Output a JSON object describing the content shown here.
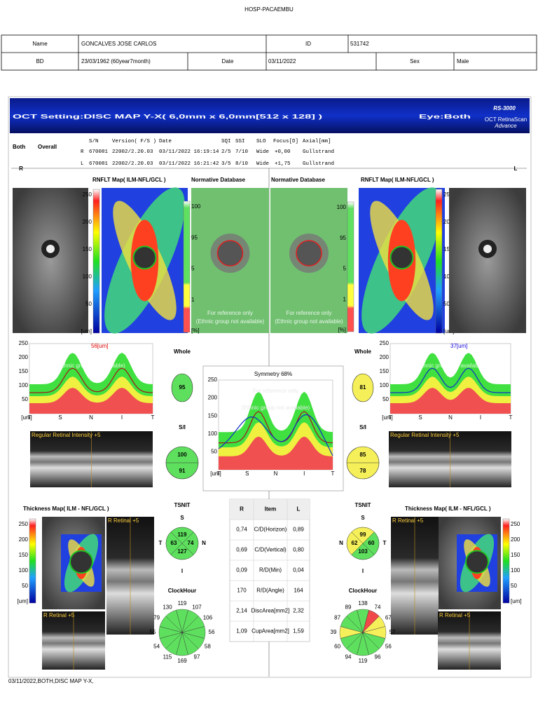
{
  "header": {
    "title": "HOSP-PACAEMBU"
  },
  "patient": {
    "row1": [
      "Name",
      "GONCALVES  JOSE CARLOS",
      "ID",
      "531742"
    ],
    "row2": [
      "BD",
      "23/03/1962 (60year7month)",
      "Date",
      "03/11/2022",
      "Sex",
      "Male"
    ]
  },
  "banner": {
    "title": "OCT Setting:DISC MAP Y-X( 6,0mm x 6,0mm[512 x 128] )",
    "eye": "Eye:Both",
    "logo": "RS-3000",
    "logo_sub1": "OCT RetinaScan",
    "logo_sub2": "Advance"
  },
  "scan": {
    "label": "Both",
    "mode": "Overall",
    "columns": [
      "S/N",
      "Version( F/S )",
      "Date",
      "SQI",
      "SSI",
      "SLO",
      "Focus[D]",
      "Axial[mm]"
    ],
    "rows": [
      [
        "R",
        "670081",
        "22002/2.20.03",
        "03/11/2022 16:19:14",
        "2/5",
        "7/10",
        "Wide",
        "+0,00",
        "Gullstrand"
      ],
      [
        "L",
        "670081",
        "22002/2.20.03",
        "03/11/2022 16:21:42",
        "3/5",
        "8/10",
        "Wide",
        "+1,75",
        "Gullstrand"
      ]
    ]
  },
  "sides": [
    "R",
    "L"
  ],
  "titles": {
    "rnflt_map": "RNFLT Map( ILM-NFL/GCL )",
    "normative": "Normative Database",
    "thickness_map": "Thickness Map( ILM - NFL/GCL )",
    "bscan": "Regular Retinal Intensity +5",
    "bscan_small": "R Retinal +5"
  },
  "reference": [
    "For reference only",
    "(Ethnic group not available)"
  ],
  "colorbar_um": [
    "250",
    "200",
    "150",
    "100",
    "50",
    "[um]"
  ],
  "colorbar_pct": [
    "100",
    "95",
    "5",
    "1",
    "[%]"
  ],
  "graph_yticks": [
    "250",
    "200",
    "150",
    "100",
    "50"
  ],
  "graph_xlabels": [
    "[um]",
    "T",
    "S",
    "N",
    "I",
    "T"
  ],
  "labels": {
    "whole": "Whole",
    "si": "S/I",
    "tsnit": "TSNIT",
    "clock": "ClockHour",
    "symmetry": "Symmetry 68%"
  },
  "eyes": [
    {
      "marker": "56[um]",
      "whole": "95",
      "whole_color": "#5ee05e",
      "si": [
        "100",
        "91"
      ],
      "si_color": "#5ee05e",
      "tsnit": [
        {
          "label": "S",
          "value": "119"
        },
        {
          "label": "T",
          "value": "63"
        },
        {
          "label": "N",
          "value": "74"
        },
        {
          "label": "I",
          "value": "127"
        }
      ],
      "tsnit_colors": [
        "#5ee05e",
        "#5ee05e",
        "#5ee05e",
        "#5ee05e"
      ],
      "clock": [
        "119",
        "107",
        "106",
        "56",
        "58",
        "97",
        "169",
        "115",
        "54",
        "55",
        "79",
        "130"
      ],
      "clock_colors": [
        "#5ee05e",
        "#5ee05e",
        "#5ee05e",
        "#5ee05e",
        "#5ee05e",
        "#5ee05e",
        "#5ee05e",
        "#5ee05e",
        "#5ee05e",
        "#5ee05e",
        "#5ee05e",
        "#5ee05e"
      ]
    },
    {
      "marker": "37[um]",
      "whole": "81",
      "whole_color": "#f5f05a",
      "si": [
        "85",
        "78"
      ],
      "si_color": "#f5f05a",
      "tsnit": [
        {
          "label": "S",
          "value": "99"
        },
        {
          "label": "N",
          "value": "62"
        },
        {
          "label": "T",
          "value": "60"
        },
        {
          "label": "I",
          "value": "103"
        }
      ],
      "tsnit_colors": [
        "#f5f05a",
        "#5ee05e",
        "#f5f05a",
        "#5ee05e"
      ],
      "clock": [
        "138",
        "74",
        "67",
        "57",
        "56",
        "96",
        "119",
        "94",
        "60",
        "39",
        "87",
        "89"
      ],
      "clock_colors": [
        "#5ee05e",
        "#f04848",
        "#f5f05a",
        "#f5f05a",
        "#5ee05e",
        "#5ee05e",
        "#5ee05e",
        "#5ee05e",
        "#5ee05e",
        "#f5f05a",
        "#5ee05e",
        "#5ee05e"
      ]
    }
  ],
  "symmetry_table": {
    "header": [
      "R",
      "Item",
      "L"
    ],
    "rows": [
      [
        "0,74",
        "C/D(Horizon)",
        "0,89"
      ],
      [
        "0,69",
        "C/D(Vertical)",
        "0,80"
      ],
      [
        "0,09",
        "R/D(Min)",
        "0,04"
      ],
      [
        "170",
        "R/D(Angle)",
        "164"
      ],
      [
        "2,14",
        "DiscArea[mm2]",
        "2,32"
      ],
      [
        "1,09",
        "CupArea[mm2]",
        "1,59"
      ]
    ]
  },
  "footer": "03/11/2022,BOTH,DISC MAP Y-X,"
}
